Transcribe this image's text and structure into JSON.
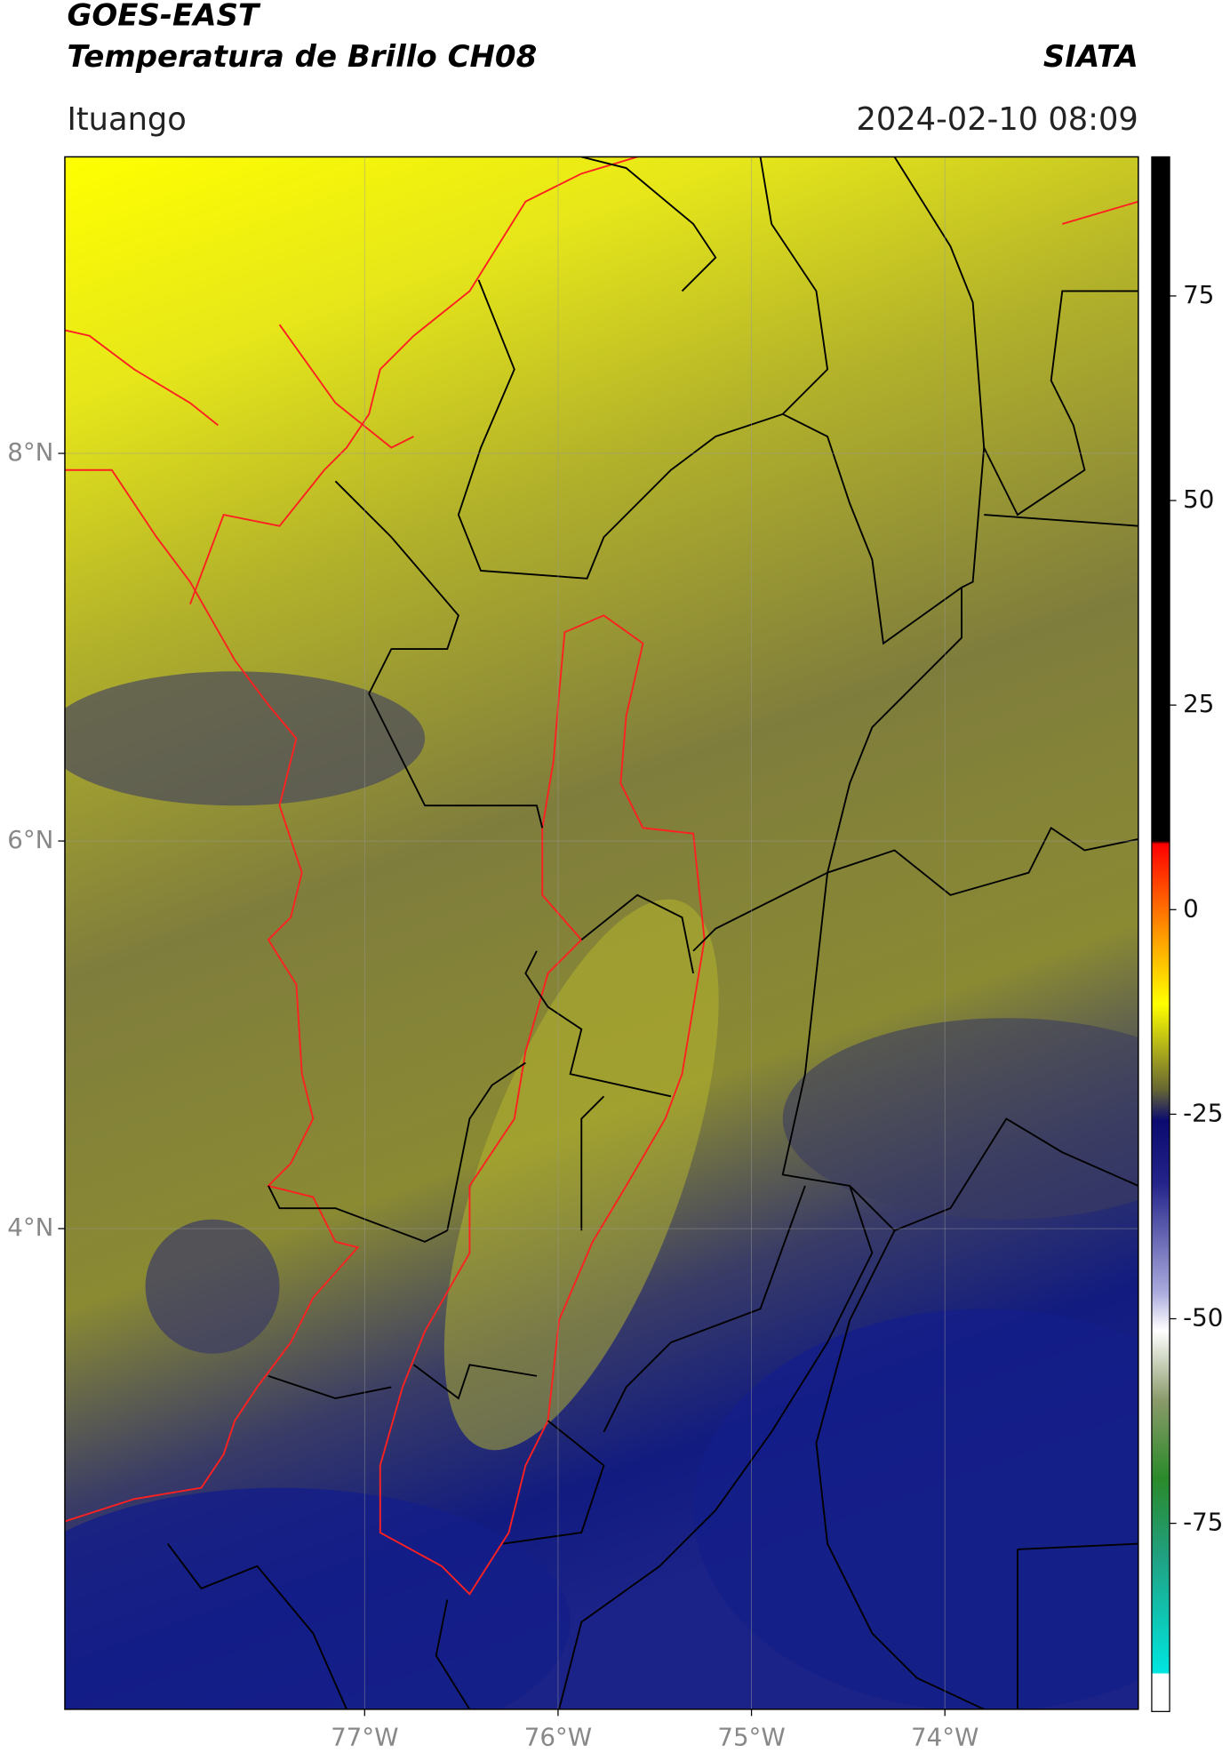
{
  "header": {
    "title": "GOES-EAST",
    "subtitle": "Temperatura de Brillo CH08",
    "source": "SIATA",
    "location": "Ituango",
    "datetime": "2024-02-10 08:09"
  },
  "map": {
    "xlim": [
      -78.55,
      -73.0
    ],
    "ylim": [
      1.52,
      9.53
    ],
    "lon_ticks": [
      {
        "value": -77,
        "label": "77°W"
      },
      {
        "value": -76,
        "label": "76°W"
      },
      {
        "value": -75,
        "label": "75°W"
      },
      {
        "value": -74,
        "label": "74°W"
      }
    ],
    "lat_ticks": [
      {
        "value": 8,
        "label": "8°N"
      },
      {
        "value": 6,
        "label": "6°N"
      },
      {
        "value": 4,
        "label": "4°N"
      }
    ],
    "colorbar": {
      "lim": [
        -98,
        92
      ],
      "ticks": [
        75,
        50,
        25,
        0,
        -25,
        -50,
        -75
      ]
    }
  }
}
